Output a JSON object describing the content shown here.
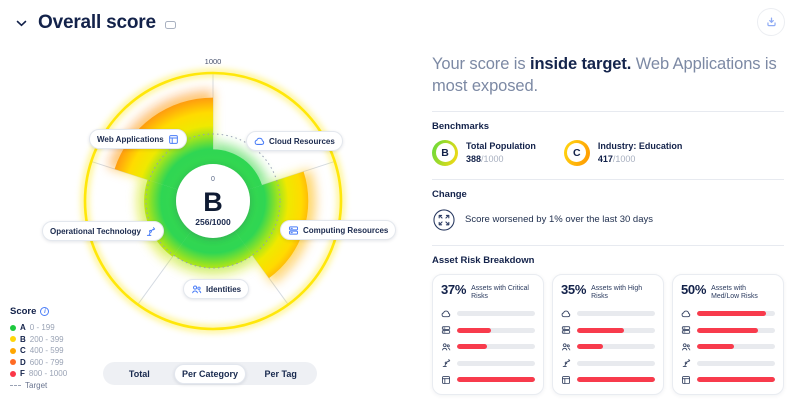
{
  "header": {
    "title": "Overall score"
  },
  "icons": [
    "chevron-down-icon",
    "info-icon",
    "download-icon",
    "cloud-icon",
    "computing-icon",
    "identities-icon",
    "operational-technology-icon",
    "web-applications-icon",
    "expand-icon"
  ],
  "chart": {
    "grade": "B",
    "score": "256/1000",
    "scale_min": "0",
    "scale_max": "1000",
    "max": 1000,
    "target": 330,
    "outer_ring_color": "#FFE70A",
    "target_color": "#97A0B4",
    "gradient_stops": [
      [
        0,
        "#3FDB47"
      ],
      [
        0.4,
        "#2FD653"
      ],
      [
        0.5,
        "#9FE41F"
      ],
      [
        0.58,
        "#EFE900"
      ],
      [
        0.68,
        "#FFDB00"
      ],
      [
        0.76,
        "#FFAE0A"
      ],
      [
        0.86,
        "#FB7B1C"
      ],
      [
        1,
        "#F0480F"
      ]
    ],
    "sectors": [
      {
        "id": "cloud-resources",
        "label": "Cloud Resources",
        "value": 160,
        "start_angle": 0,
        "end_angle": 72
      },
      {
        "id": "computing-resources",
        "label": "Computing Resources",
        "value": 640,
        "start_angle": 72,
        "end_angle": 144
      },
      {
        "id": "identities",
        "label": "Identities",
        "value": 330,
        "start_angle": 144,
        "end_angle": 216
      },
      {
        "id": "operational-technology",
        "label": "Operational Technology",
        "value": 350,
        "start_angle": 216,
        "end_angle": 288
      },
      {
        "id": "web-applications",
        "label": "Web Applications",
        "value": 730,
        "start_angle": 288,
        "end_angle": 360
      }
    ]
  },
  "legend": {
    "title": "Score",
    "items": [
      {
        "grade": "A",
        "range": "0 - 199",
        "color": "#1DC93E"
      },
      {
        "grade": "B",
        "range": "200 - 399",
        "color": "#FFD60A"
      },
      {
        "grade": "C",
        "range": "400 - 599",
        "color": "#FFA600"
      },
      {
        "grade": "D",
        "range": "600 - 799",
        "color": "#FF6B24"
      },
      {
        "grade": "F",
        "range": "800 - 1000",
        "color": "#FB3748"
      }
    ],
    "target_label": "Target"
  },
  "tabs": {
    "items": [
      "Total",
      "Per Category",
      "Per Tag"
    ],
    "active": "Per Category"
  },
  "headline": {
    "part1": "Your score is ",
    "part2": "inside target.",
    "part3": " Web Applications is most exposed."
  },
  "benchmarks": {
    "title": "Benchmarks",
    "items": [
      {
        "grade": "B",
        "label": "Total Population",
        "score": "388",
        "total": "/1000",
        "ring": "linear-gradient(110deg,#5FDB3B,#FFD912)"
      },
      {
        "grade": "C",
        "label": "Industry: Education",
        "score": "417",
        "total": "/1000",
        "ring": "linear-gradient(110deg,#FFD912,#FF9500)"
      }
    ]
  },
  "change": {
    "title": "Change",
    "text": "Score worsened by 1% over the last 30 days"
  },
  "risk": {
    "title": "Asset Risk Breakdown",
    "bar_color": "#F83B4C",
    "track_color": "#E8EAEE",
    "icon_order": [
      "cloud",
      "computing",
      "identities",
      "operational-technology",
      "web-applications"
    ],
    "cards": [
      {
        "pct": "37%",
        "label": "Assets with Critical Risks",
        "bars": [
          0,
          44,
          38,
          0,
          100
        ]
      },
      {
        "pct": "35%",
        "label": "Assets with High Risks",
        "bars": [
          0,
          60,
          33,
          0,
          100
        ]
      },
      {
        "pct": "50%",
        "label": "Assets with Med/Low Risks",
        "bars": [
          88,
          78,
          48,
          0,
          100
        ]
      }
    ]
  }
}
